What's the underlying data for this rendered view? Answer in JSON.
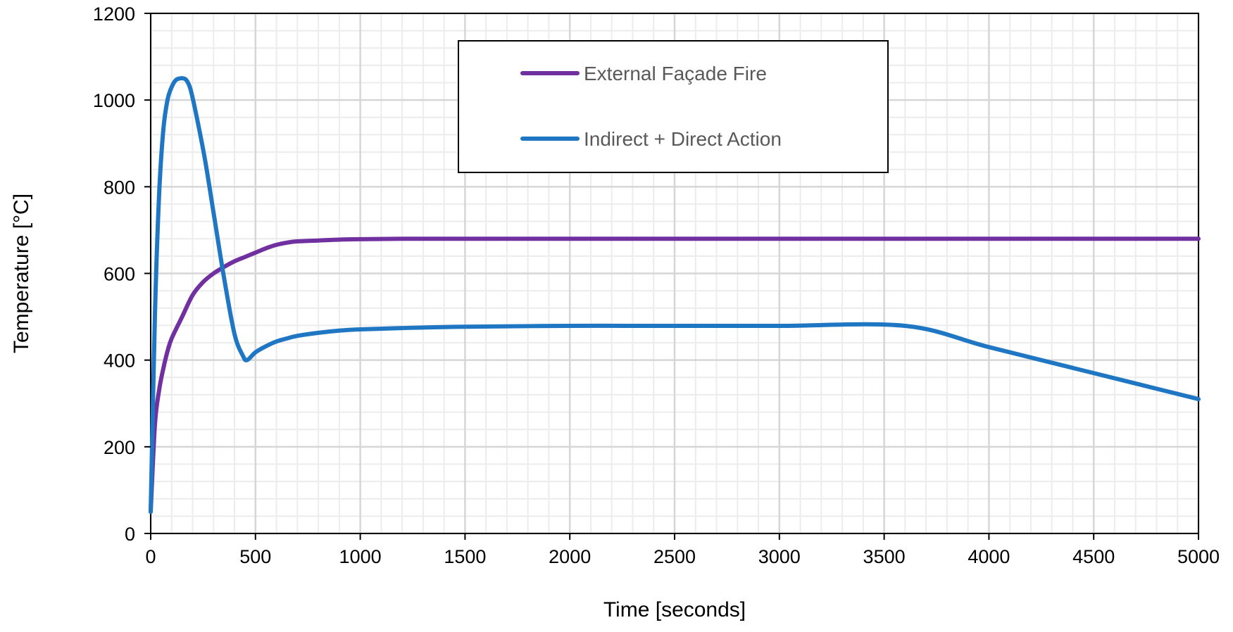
{
  "chart_data": {
    "type": "line",
    "title": "",
    "xlabel": "Time [seconds]",
    "ylabel": "Temperature [°C]",
    "xlim": [
      0,
      5000
    ],
    "ylim": [
      0,
      1200
    ],
    "x_major_step": 500,
    "y_major_step": 200,
    "x_minor_step": 100,
    "y_minor_step": 40,
    "grid": true,
    "legend_position": "top-center",
    "series": [
      {
        "name": "External Façade Fire",
        "color": "#7030A0",
        "x": [
          0,
          20,
          40,
          60,
          80,
          100,
          150,
          200,
          250,
          300,
          350,
          400,
          450,
          500,
          550,
          600,
          650,
          700,
          800,
          900,
          1000,
          1200,
          1500,
          2000,
          3000,
          4000,
          5000
        ],
        "y": [
          50,
          250,
          330,
          380,
          420,
          450,
          500,
          550,
          580,
          600,
          615,
          628,
          638,
          648,
          658,
          666,
          671,
          674,
          676,
          678,
          679,
          680,
          680,
          680,
          680,
          680,
          680
        ]
      },
      {
        "name": "Indirect + Direct Action",
        "color": "#1F77C4",
        "x": [
          0,
          20,
          40,
          60,
          80,
          100,
          120,
          140,
          155,
          170,
          190,
          220,
          260,
          300,
          350,
          400,
          440,
          460,
          500,
          550,
          600,
          650,
          700,
          800,
          900,
          1000,
          1200,
          1500,
          2000,
          2500,
          3000,
          3600,
          4000,
          4500,
          5000
        ],
        "y": [
          50,
          500,
          780,
          930,
          1000,
          1030,
          1046,
          1050,
          1050,
          1046,
          1025,
          960,
          860,
          740,
          590,
          460,
          410,
          400,
          418,
          432,
          443,
          450,
          456,
          463,
          468,
          471,
          474,
          477,
          479,
          479,
          479,
          479,
          430,
          370,
          310
        ]
      }
    ]
  }
}
